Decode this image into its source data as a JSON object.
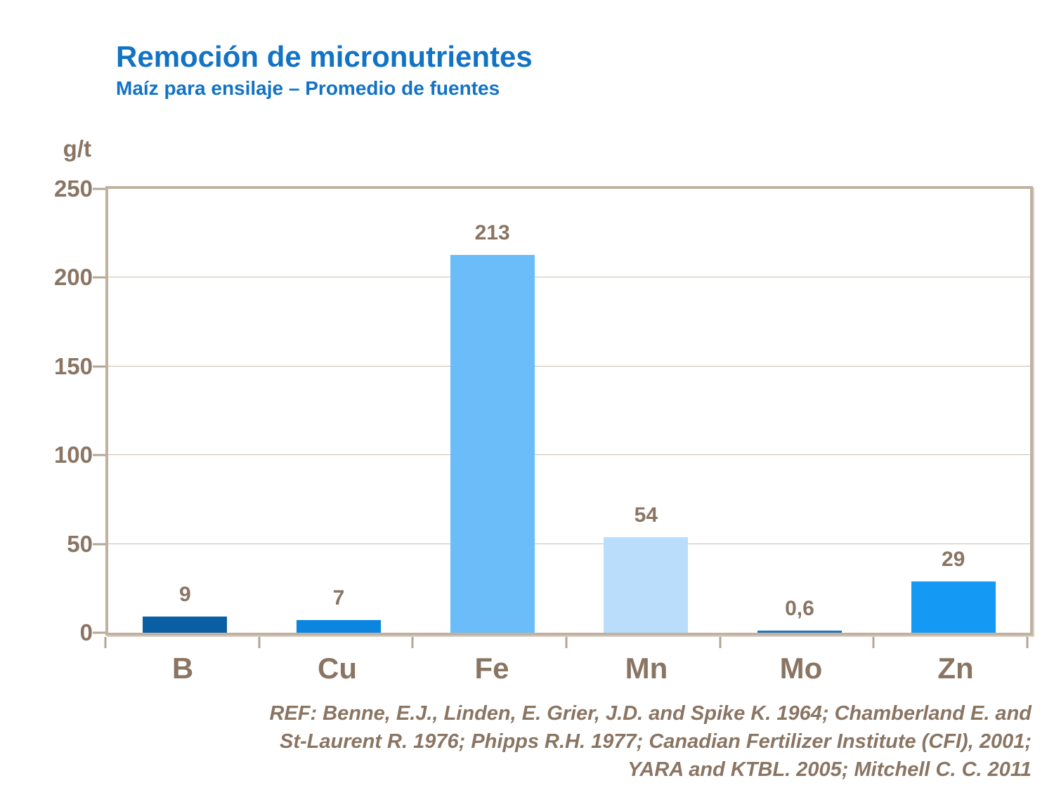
{
  "slide": {
    "title": "Remoción de micronutrientes",
    "subtitle": "Maíz para ensilaje – Promedio de fuentes"
  },
  "chart_data": {
    "type": "bar",
    "title": "Remoción de micronutrientes",
    "subtitle": "Maíz para ensilaje – Promedio de fuentes",
    "ylabel": "g/t",
    "xlabel": "",
    "categories": [
      "B",
      "Cu",
      "Fe",
      "Mn",
      "Mo",
      "Zn"
    ],
    "values": [
      9,
      7,
      213,
      54,
      0.6,
      29
    ],
    "value_labels": [
      "9",
      "7",
      "213",
      "54",
      "0,6",
      "29"
    ],
    "bar_colors": [
      "#0a5fa4",
      "#0a85e0",
      "#6abdf9",
      "#b9ddfa",
      "#2273b8",
      "#149af5"
    ],
    "ylim": [
      0,
      250
    ],
    "y_ticks": [
      0,
      50,
      100,
      150,
      200,
      250
    ],
    "grid": true,
    "legend_position": "none"
  },
  "footer": {
    "ref_lines": [
      "REF: Benne, E.J., Linden, E. Grier, J.D. and Spike K. 1964; Chamberland  E. and",
      "St-Laurent R. 1976; Phipps R.H. 1977; Canadian Fertilizer Institute (CFI), 2001;",
      "YARA and KTBL. 2005; Mitchell C. C. 2011"
    ]
  },
  "colors": {
    "title_blue": "#1273c5",
    "text_brown": "#8a7563",
    "axis_frame": "#bfb2a1",
    "gridline": "#c9bfb1"
  }
}
